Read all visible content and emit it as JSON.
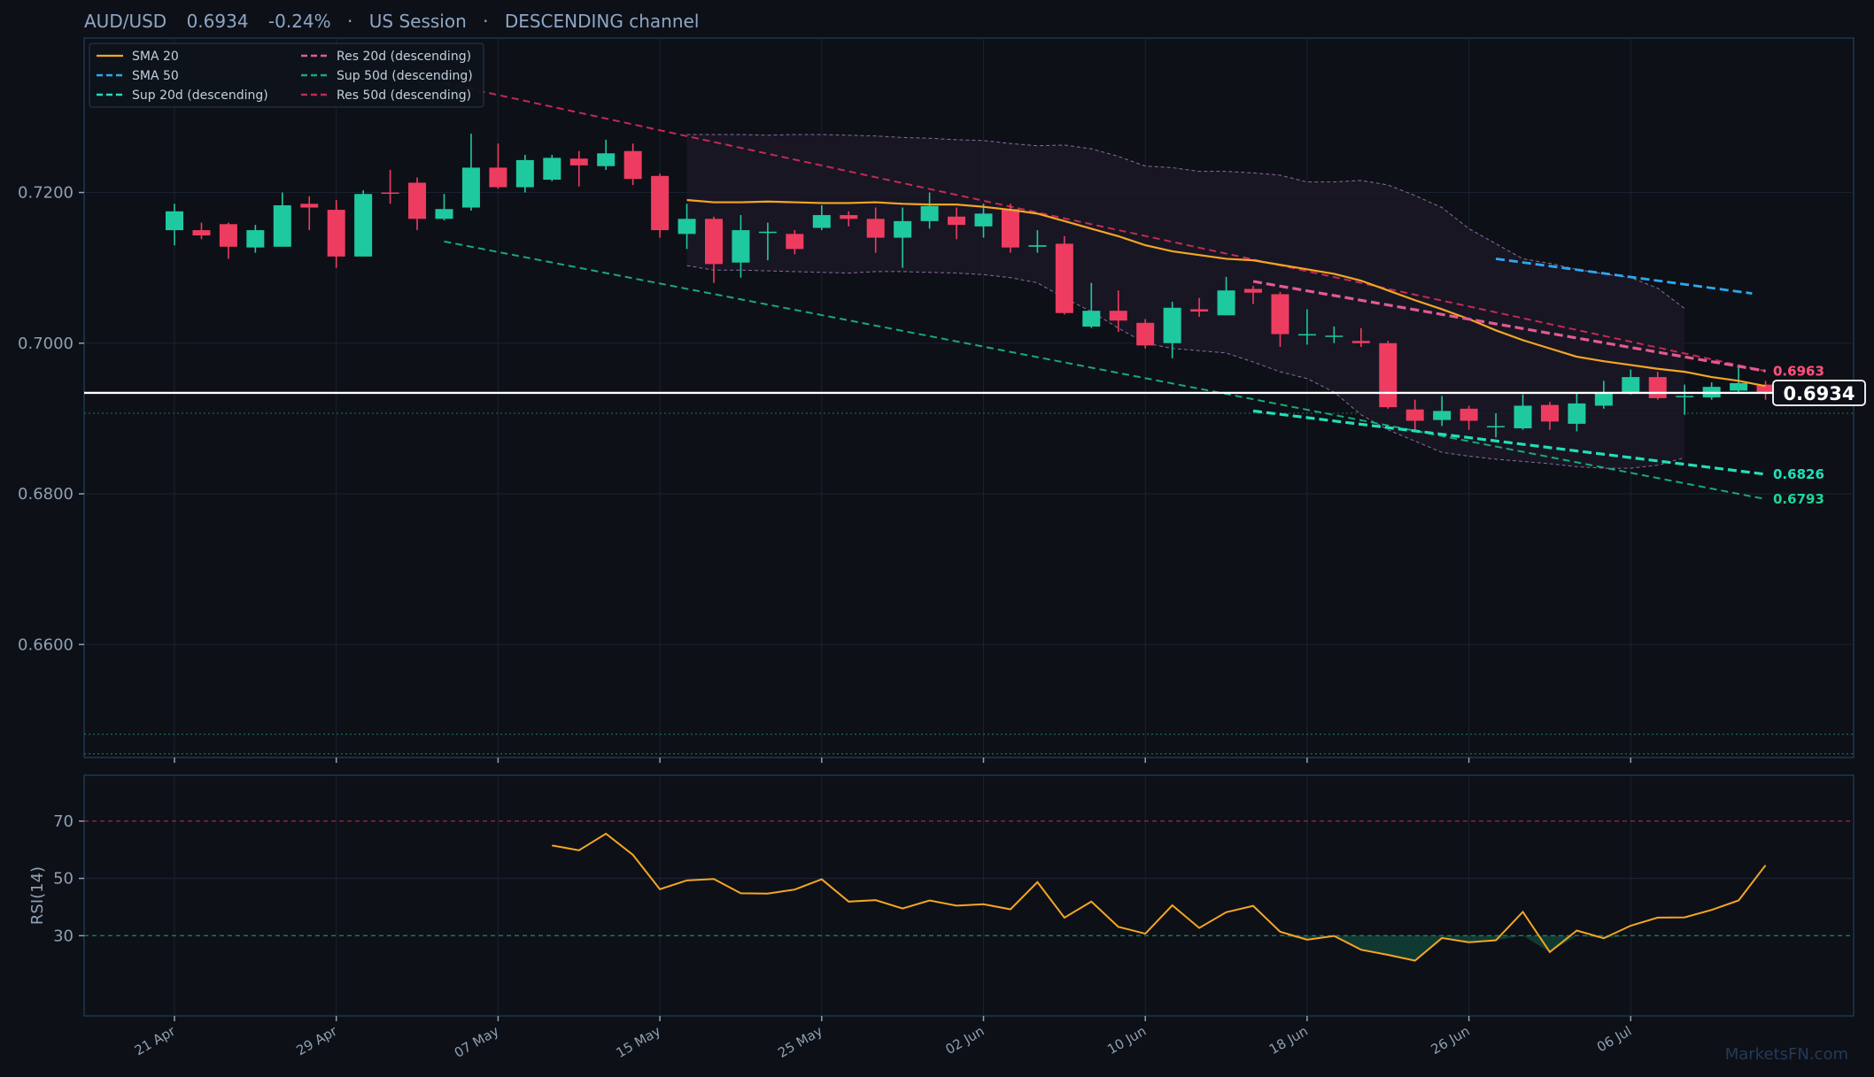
{
  "header": {
    "symbol": "AUD/USD",
    "price": "0.6934",
    "change": "-0.24%",
    "session": "US Session",
    "channel": "DESCENDING channel",
    "sep": "·"
  },
  "watermark": "MarketsFN.com",
  "colors": {
    "background": "#0d1017",
    "up": "#1fc9a0",
    "down": "#ee3c60",
    "sma20": "#f5a623",
    "sma50": "#2ea8f0",
    "sup20": "#21e0b8",
    "res20": "#e25a92",
    "sup50": "#1aa877",
    "res50": "#c22a55",
    "band": "#8a6c9e",
    "price_line": "#ffffff",
    "rsi": "#f5a623"
  },
  "chart_data": [
    {
      "type": "candlestick",
      "title": "AUD/USD 0.6934 -0.24% · US Session · DESCENDING channel",
      "ylim": [
        0.645,
        0.7405
      ],
      "y_ticks": [
        0.72,
        0.7,
        0.68,
        0.66
      ],
      "y_tick_labels": [
        "0.7200",
        "0.7000",
        "0.6800",
        "0.6600"
      ],
      "x_tick_labels": [
        "21 Apr",
        "29 Apr",
        "07 May",
        "15 May",
        "25 May",
        "02 Jun",
        "10 Jun",
        "18 Jun",
        "26 Jun",
        "06 Jul"
      ],
      "x_tick_index": [
        0,
        6,
        12,
        18,
        24,
        30,
        36,
        42,
        48,
        54
      ],
      "candles": [
        [
          0.715,
          0.7175,
          0.7185,
          0.713
        ],
        [
          0.715,
          0.7143,
          0.716,
          0.7138
        ],
        [
          0.7158,
          0.7128,
          0.716,
          0.7112
        ],
        [
          0.7127,
          0.715,
          0.7157,
          0.712
        ],
        [
          0.7128,
          0.7183,
          0.72,
          0.7128
        ],
        [
          0.7185,
          0.718,
          0.7195,
          0.715
        ],
        [
          0.7177,
          0.7115,
          0.719,
          0.71
        ],
        [
          0.7115,
          0.7198,
          0.7203,
          0.7115
        ],
        [
          0.72,
          0.7199,
          0.723,
          0.7185
        ],
        [
          0.7213,
          0.7165,
          0.722,
          0.715
        ],
        [
          0.7165,
          0.7178,
          0.7198,
          0.7163
        ],
        [
          0.718,
          0.7233,
          0.7278,
          0.7176
        ],
        [
          0.7233,
          0.7207,
          0.7265,
          0.7205
        ],
        [
          0.7207,
          0.7243,
          0.725,
          0.72
        ],
        [
          0.7217,
          0.7246,
          0.725,
          0.7215
        ],
        [
          0.7245,
          0.7236,
          0.7255,
          0.7208
        ],
        [
          0.7235,
          0.7252,
          0.727,
          0.723
        ],
        [
          0.7255,
          0.7218,
          0.7265,
          0.721
        ],
        [
          0.7222,
          0.715,
          0.7225,
          0.714
        ],
        [
          0.7145,
          0.7165,
          0.7185,
          0.7125
        ],
        [
          0.7165,
          0.7105,
          0.7168,
          0.708
        ],
        [
          0.7107,
          0.715,
          0.717,
          0.7087
        ],
        [
          0.7148,
          0.7148,
          0.716,
          0.711
        ],
        [
          0.7145,
          0.7125,
          0.715,
          0.7118
        ],
        [
          0.7153,
          0.717,
          0.7183,
          0.715
        ],
        [
          0.717,
          0.7165,
          0.7175,
          0.7155
        ],
        [
          0.7165,
          0.714,
          0.718,
          0.712
        ],
        [
          0.714,
          0.7162,
          0.718,
          0.71
        ],
        [
          0.7162,
          0.7182,
          0.72,
          0.7152
        ],
        [
          0.7168,
          0.7157,
          0.718,
          0.7138
        ],
        [
          0.7155,
          0.7172,
          0.7185,
          0.714
        ],
        [
          0.7178,
          0.7127,
          0.7185,
          0.712
        ],
        [
          0.7128,
          0.713,
          0.715,
          0.712
        ],
        [
          0.7132,
          0.704,
          0.7142,
          0.7038
        ],
        [
          0.7022,
          0.7043,
          0.708,
          0.702
        ],
        [
          0.7043,
          0.703,
          0.707,
          0.7015
        ],
        [
          0.7027,
          0.6997,
          0.7032,
          0.6993
        ],
        [
          0.7,
          0.7047,
          0.7055,
          0.698
        ],
        [
          0.7045,
          0.7042,
          0.706,
          0.7035
        ],
        [
          0.7037,
          0.707,
          0.7088,
          0.7037
        ],
        [
          0.7072,
          0.7067,
          0.7076,
          0.7052
        ],
        [
          0.7065,
          0.7012,
          0.7068,
          0.6995
        ],
        [
          0.7012,
          0.7012,
          0.7045,
          0.6998
        ],
        [
          0.701,
          0.701,
          0.7022,
          0.7
        ],
        [
          0.7003,
          0.7,
          0.702,
          0.6995
        ],
        [
          0.7,
          0.6915,
          0.7003,
          0.6913
        ],
        [
          0.6912,
          0.6897,
          0.6925,
          0.6883
        ],
        [
          0.6898,
          0.691,
          0.693,
          0.689
        ],
        [
          0.6913,
          0.6897,
          0.6917,
          0.6885
        ],
        [
          0.689,
          0.689,
          0.6907,
          0.6875
        ],
        [
          0.6887,
          0.6917,
          0.6932,
          0.6885
        ],
        [
          0.6918,
          0.6896,
          0.6922,
          0.6885
        ],
        [
          0.6893,
          0.692,
          0.6935,
          0.6883
        ],
        [
          0.6917,
          0.6933,
          0.695,
          0.6913
        ],
        [
          0.6935,
          0.6955,
          0.6965,
          0.6932
        ],
        [
          0.6955,
          0.6927,
          0.6962,
          0.6925
        ],
        [
          0.693,
          0.693,
          0.6945,
          0.6905
        ],
        [
          0.6928,
          0.6942,
          0.6948,
          0.6925
        ],
        [
          0.6937,
          0.6947,
          0.6968,
          0.6935
        ],
        [
          0.6945,
          0.6934,
          0.695,
          0.6925
        ]
      ],
      "sma20": {
        "start": 19,
        "values": [
          0.719,
          0.7187,
          0.7187,
          0.7188,
          0.7187,
          0.7186,
          0.7186,
          0.7187,
          0.7185,
          0.7184,
          0.7184,
          0.7181,
          0.7177,
          0.7172,
          0.7162,
          0.7152,
          0.7142,
          0.713,
          0.7122,
          0.7117,
          0.7112,
          0.711,
          0.7104,
          0.7098,
          0.7092,
          0.7083,
          0.707,
          0.7057,
          0.7045,
          0.7032,
          0.7017,
          0.7004,
          0.6993,
          0.6982,
          0.6976,
          0.6971,
          0.6966,
          0.6962,
          0.6955,
          0.695,
          0.6943
        ]
      },
      "sma50": {
        "start": 49,
        "values": [
          0.7112,
          0.7066
        ]
      },
      "bands": {
        "start": 19,
        "upper": [
          0.7277,
          0.7277,
          0.7277,
          0.7276,
          0.7277,
          0.7277,
          0.7276,
          0.7275,
          0.7273,
          0.7272,
          0.727,
          0.7269,
          0.7265,
          0.7262,
          0.7263,
          0.7258,
          0.7248,
          0.7235,
          0.7233,
          0.7228,
          0.7228,
          0.7226,
          0.7223,
          0.7214,
          0.7214,
          0.7216,
          0.721,
          0.7196,
          0.718,
          0.7152,
          0.7132,
          0.7112,
          0.7106,
          0.7098,
          0.7092,
          0.7087,
          0.7073,
          0.7046
        ],
        "lower": [
          0.7103,
          0.7097,
          0.7097,
          0.7096,
          0.7095,
          0.7094,
          0.7093,
          0.7095,
          0.7095,
          0.7094,
          0.7093,
          0.7091,
          0.7087,
          0.708,
          0.706,
          0.7042,
          0.702,
          0.7,
          0.6993,
          0.699,
          0.6987,
          0.6975,
          0.6962,
          0.6953,
          0.6935,
          0.6905,
          0.6885,
          0.687,
          0.6855,
          0.685,
          0.6846,
          0.6843,
          0.684,
          0.6836,
          0.6834,
          0.6834,
          0.6838,
          0.6848
        ]
      },
      "res20": {
        "from": [
          40,
          0.7082
        ],
        "to": [
          59,
          0.6963
        ]
      },
      "sup20": {
        "from": [
          40,
          0.691
        ],
        "to": [
          59,
          0.6826
        ]
      },
      "res50": {
        "from": [
          10,
          0.7345
        ],
        "to": [
          59,
          0.6963
        ]
      },
      "sup50": {
        "from": [
          10,
          0.7135
        ],
        "to": [
          59,
          0.6793
        ]
      },
      "current_price": 0.6934,
      "horizontal_levels": [
        0.6907,
        0.6481,
        0.6455
      ],
      "level_labels": [
        {
          "value": 0.6963,
          "text": "0.6963",
          "color": "#e25a92"
        },
        {
          "value": 0.6963,
          "text": "0.6963",
          "color": "#ff4d79"
        },
        {
          "value": 0.6826,
          "text": "0.6826",
          "color": "#21e0b8"
        },
        {
          "value": 0.6793,
          "text": "0.6793",
          "color": "#1fd698"
        }
      ],
      "price_tag": "0.6934",
      "legend": [
        {
          "name": "SMA 20",
          "color": "#f5a623",
          "dash": "solid"
        },
        {
          "name": "SMA 50",
          "color": "#2ea8f0",
          "dash": "dashed"
        },
        {
          "name": "Sup 20d (descending)",
          "color": "#21e0b8",
          "dash": "dashed"
        },
        {
          "name": "Res 20d (descending)",
          "color": "#e25a92",
          "dash": "dashed"
        },
        {
          "name": "Sup 50d (descending)",
          "color": "#1aa877",
          "dash": "dashed"
        },
        {
          "name": "Res 50d (descending)",
          "color": "#c22a55",
          "dash": "dashed"
        }
      ],
      "legend_placement": "top-left"
    },
    {
      "type": "line",
      "ylabel": "RSI(14)",
      "ylim": [
        2,
        86
      ],
      "y_ticks": [
        70,
        50,
        30
      ],
      "y_tick_labels": [
        "70",
        "50",
        "30"
      ],
      "overbought": 70,
      "oversold": 30,
      "start": 14,
      "values": [
        61.5,
        59.8,
        65.6,
        58.2,
        46.2,
        49.3,
        49.8,
        44.8,
        44.7,
        46.1,
        49.7,
        41.9,
        42.4,
        39.5,
        42.3,
        40.5,
        41.0,
        39.2,
        48.7,
        36.3,
        41.9,
        33.1,
        30.7,
        40.6,
        32.7,
        38.2,
        40.4,
        31.4,
        28.6,
        29.9,
        25.1,
        23.3,
        21.3,
        29.2,
        27.7,
        28.4,
        38.3,
        24.3,
        31.8,
        29.1,
        33.5,
        36.3,
        36.4,
        39.0,
        42.3,
        54.6
      ]
    }
  ]
}
